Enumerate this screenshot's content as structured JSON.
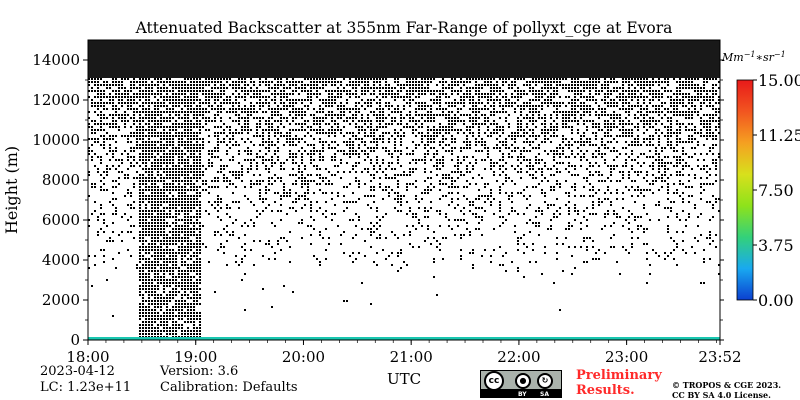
{
  "chart_data": {
    "type": "heatmap",
    "title": "Attenuated Backscatter at 355nm Far-Range of pollyxt_cge at Evora",
    "ylabel": "Height (m)",
    "xlabel": "UTC",
    "x_ticks": [
      "18:00",
      "19:00",
      "20:00",
      "21:00",
      "22:00",
      "23:00",
      "23:52"
    ],
    "x_tick_hours": [
      18,
      19,
      20,
      21,
      22,
      23,
      23.8667
    ],
    "xlim_hours": [
      18,
      23.8667
    ],
    "y_ticks": [
      0,
      2000,
      4000,
      6000,
      8000,
      10000,
      12000,
      14000
    ],
    "ylim": [
      0,
      15000
    ],
    "colorbar": {
      "unit_base": "Mm",
      "unit_exp1": "−1",
      "unit_mid": "∗sr",
      "unit_exp2": "−1",
      "ticks": [
        "0.00",
        "3.75",
        "7.50",
        "11.25",
        "15.00"
      ],
      "tick_values": [
        0,
        3.75,
        7.5,
        11.25,
        15
      ],
      "range": [
        0,
        15
      ],
      "colormap": [
        "#0b3fd0",
        "#19a9f0",
        "#33d17a",
        "#8ee21b",
        "#d8e01c",
        "#f5a021",
        "#f25520",
        "#e81a1a"
      ]
    },
    "features": {
      "noise_color": "#000000",
      "surface_layer_color": "#19c7b0",
      "dense_region_hours": [
        18.45,
        19.05
      ]
    }
  },
  "info": {
    "date": "2023-04-12",
    "lc": "LC: 1.23e+11",
    "version": "Version: 3.6",
    "calibration": "Calibration: Defaults"
  },
  "footer": {
    "prelim_line1": "Preliminary",
    "prelim_line2": "Results.",
    "copyright_line1": "© TROPOS & CGE 2023.",
    "copyright_line2": "CC BY SA 4.0 License.",
    "license_cc": "cc",
    "license_by": "BY",
    "license_sa": "SA"
  }
}
